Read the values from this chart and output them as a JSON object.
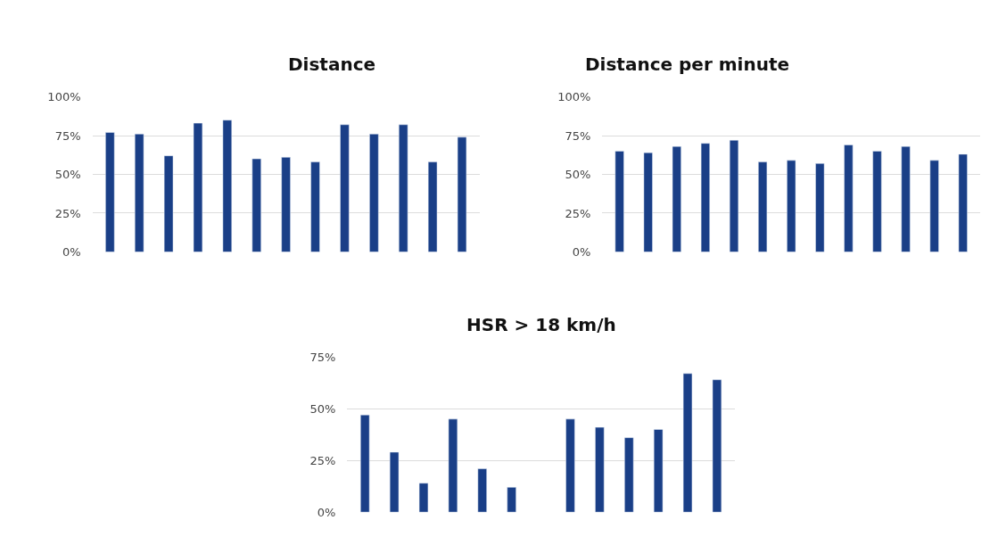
{
  "chart_data": [
    {
      "type": "bar",
      "title": "Distance",
      "categories": [
        null,
        null,
        null,
        null,
        null,
        null,
        null,
        null,
        null,
        null,
        null,
        null,
        null
      ],
      "values": [
        77,
        76,
        62,
        83,
        85,
        60,
        61,
        58,
        82,
        76,
        82,
        58,
        74
      ],
      "color": "#1a3f87",
      "ylim": [
        0,
        100
      ],
      "yticks": [
        {
          "value": 0,
          "label": "0%"
        },
        {
          "value": 25,
          "label": "25%"
        },
        {
          "value": 50,
          "label": "50%"
        },
        {
          "value": 75,
          "label": "75%"
        },
        {
          "value": 100,
          "label": "100%"
        }
      ],
      "grid": "y",
      "tick_labels": "y"
    },
    {
      "type": "bar",
      "title": "Distance per minute",
      "categories": [
        null,
        null,
        null,
        null,
        null,
        null,
        null,
        null,
        null,
        null,
        null,
        null,
        null
      ],
      "values": [
        65,
        64,
        68,
        70,
        72,
        58,
        59,
        57,
        69,
        65,
        68,
        59,
        63
      ],
      "color": "#1a3f87",
      "ylim": [
        0,
        100
      ],
      "yticks": [
        {
          "value": 0,
          "label": "0%"
        },
        {
          "value": 25,
          "label": "25%"
        },
        {
          "value": 50,
          "label": "50%"
        },
        {
          "value": 75,
          "label": "75%"
        },
        {
          "value": 100,
          "label": "100%"
        }
      ],
      "grid": "y",
      "tick_labels": "y"
    },
    {
      "type": "bar",
      "title": "HSR > 18 km/h",
      "categories": [
        null,
        null,
        null,
        null,
        null,
        null,
        null,
        null,
        null,
        null,
        null,
        null,
        null
      ],
      "values": [
        47,
        29,
        14,
        45,
        21,
        12,
        null,
        45,
        41,
        36,
        40,
        67,
        64
      ],
      "color": "#1a3f87",
      "ylim": [
        0,
        75
      ],
      "yticks": [
        {
          "value": 0,
          "label": "0%"
        },
        {
          "value": 25,
          "label": "25%"
        },
        {
          "value": 50,
          "label": "50%"
        },
        {
          "value": 75,
          "label": "75%"
        }
      ],
      "grid": "y",
      "tick_labels": "y"
    }
  ]
}
